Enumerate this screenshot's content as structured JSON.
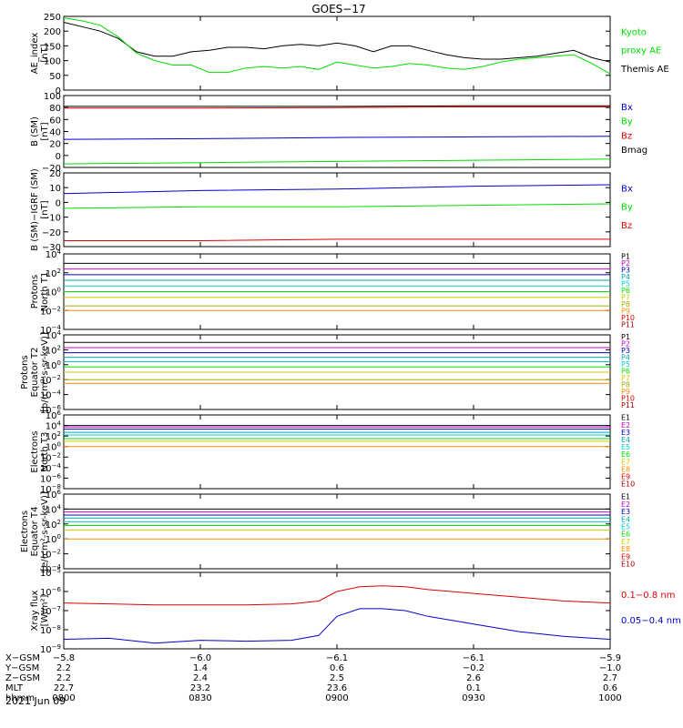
{
  "title": "GOES−17",
  "date": "2021 Jun 09",
  "colors": {
    "black": "#000000",
    "red": "#e00000",
    "green": "#00dd00",
    "blue": "#0000cc",
    "cyan": "#00cccc",
    "yellow": "#cccc00",
    "orange": "#ff8c00",
    "darkred": "#aa0000",
    "magenta": "#cc00cc",
    "purple": "#5500aa",
    "teal": "#00aaaa",
    "olive": "#aaaa00"
  },
  "chart_data": [
    {
      "id": "ae",
      "type": "line",
      "ylabel": [
        "AE_index",
        "[nT]"
      ],
      "ylim": [
        0,
        250
      ],
      "ticks": [
        "250",
        "200",
        "150",
        "100",
        "50",
        "0"
      ],
      "tick_values": [
        250,
        200,
        150,
        100,
        50,
        0
      ],
      "legend": [
        {
          "label": "Kyoto",
          "color": "green"
        },
        {
          "label": "proxy AE",
          "color": "green"
        },
        {
          "label": "Themis AE",
          "color": "black"
        }
      ],
      "x": [
        0,
        4,
        8,
        12,
        16,
        20,
        24,
        28,
        32,
        36,
        40,
        44,
        48,
        52,
        56,
        60,
        64,
        68,
        72,
        76,
        80,
        84,
        88,
        92,
        96,
        100,
        104,
        108,
        112,
        116,
        120
      ],
      "series": [
        {
          "name": "Themis AE",
          "color": "black",
          "values": [
            230,
            215,
            200,
            175,
            130,
            115,
            115,
            130,
            135,
            145,
            145,
            140,
            150,
            155,
            150,
            160,
            150,
            130,
            150,
            150,
            135,
            120,
            110,
            105,
            105,
            110,
            115,
            125,
            135,
            110,
            95
          ]
        },
        {
          "name": "Kyoto proxy AE",
          "color": "green",
          "values": [
            245,
            235,
            220,
            180,
            125,
            100,
            85,
            85,
            60,
            60,
            75,
            80,
            75,
            80,
            70,
            95,
            85,
            75,
            80,
            90,
            85,
            75,
            70,
            80,
            95,
            105,
            110,
            115,
            120,
            90,
            55
          ]
        }
      ]
    },
    {
      "id": "bsm",
      "type": "line",
      "ylabel": [
        "B (SM)",
        "[nT]"
      ],
      "ylim": [
        -20,
        100
      ],
      "ticks": [
        "100",
        "80",
        "60",
        "40",
        "20",
        "0",
        "−20"
      ],
      "tick_values": [
        100,
        80,
        60,
        40,
        20,
        0,
        -20
      ],
      "legend": [
        {
          "label": "Bx",
          "color": "blue"
        },
        {
          "label": "By",
          "color": "green"
        },
        {
          "label": "Bz",
          "color": "red"
        },
        {
          "label": "Bmag",
          "color": "black"
        }
      ],
      "x": [
        0,
        30,
        60,
        90,
        120
      ],
      "series": [
        {
          "name": "Bmag",
          "color": "black",
          "values": [
            82,
            82,
            82,
            83,
            83
          ]
        },
        {
          "name": "Bz",
          "color": "red",
          "values": [
            79,
            79,
            80,
            81,
            81
          ]
        },
        {
          "name": "Bx",
          "color": "blue",
          "values": [
            27,
            28,
            30,
            31,
            32
          ]
        },
        {
          "name": "By",
          "color": "green",
          "values": [
            -14,
            -12,
            -10,
            -8,
            -6
          ]
        }
      ]
    },
    {
      "id": "bigrf",
      "type": "line",
      "ylabel": [
        "B (SM)−IGRF (SM)",
        "[nT]"
      ],
      "ylim": [
        -30,
        20
      ],
      "ticks": [
        "20",
        "10",
        "0",
        "−10",
        "−20",
        "−30"
      ],
      "tick_values": [
        20,
        10,
        0,
        -10,
        -20,
        -30
      ],
      "legend": [
        {
          "label": "Bx",
          "color": "blue"
        },
        {
          "label": "By",
          "color": "green"
        },
        {
          "label": "Bz",
          "color": "red"
        }
      ],
      "x": [
        0,
        30,
        60,
        90,
        120
      ],
      "series": [
        {
          "name": "Bx",
          "color": "blue",
          "values": [
            6,
            8,
            9,
            11,
            12
          ]
        },
        {
          "name": "By",
          "color": "green",
          "values": [
            -4,
            -3,
            -3,
            -2,
            -1
          ]
        },
        {
          "name": "Bz",
          "color": "red",
          "values": [
            -26,
            -26,
            -25,
            -25,
            -25
          ]
        }
      ]
    },
    {
      "id": "protons_t1",
      "type": "line",
      "yscale": "log",
      "ylabel": [
        "Protons",
        "North T1"
      ],
      "ylim_exp": [
        -4,
        4
      ],
      "ticks": [
        "10^4",
        "10^2",
        "10^0",
        "10^-2",
        "10^-4"
      ],
      "tick_exps": [
        4,
        2,
        0,
        -2,
        -4
      ],
      "legend": [
        {
          "label": "P1",
          "color": "black"
        },
        {
          "label": "P2",
          "color": "magenta"
        },
        {
          "label": "P3",
          "color": "blue"
        },
        {
          "label": "P4",
          "color": "teal"
        },
        {
          "label": "P5",
          "color": "cyan"
        },
        {
          "label": "P6",
          "color": "green"
        },
        {
          "label": "P7",
          "color": "yellow"
        },
        {
          "label": "P8",
          "color": "olive"
        },
        {
          "label": "P9",
          "color": "orange"
        },
        {
          "label": "P10",
          "color": "red"
        },
        {
          "label": "P11",
          "color": "darkred"
        }
      ],
      "levels_exp": [
        3.0,
        2.4,
        1.8,
        1.2,
        0.6,
        0.0,
        -0.6,
        -1.5,
        -2.0
      ]
    },
    {
      "id": "protons_t2",
      "type": "line",
      "yscale": "log",
      "ylabel": [
        "Protons",
        "Equator T2",
        "[p/(cm²-s-sr-keV)]"
      ],
      "ylim_exp": [
        -6,
        4
      ],
      "ticks": [
        "10^4",
        "10^2",
        "10^0",
        "10^-2",
        "10^-4",
        "10^-6"
      ],
      "tick_exps": [
        4,
        2,
        0,
        -2,
        -4,
        -6
      ],
      "legend": [
        {
          "label": "P1",
          "color": "black"
        },
        {
          "label": "P2",
          "color": "magenta"
        },
        {
          "label": "P3",
          "color": "blue"
        },
        {
          "label": "P4",
          "color": "teal"
        },
        {
          "label": "P5",
          "color": "cyan"
        },
        {
          "label": "P6",
          "color": "green"
        },
        {
          "label": "P7",
          "color": "yellow"
        },
        {
          "label": "P8",
          "color": "olive"
        },
        {
          "label": "P9",
          "color": "orange"
        },
        {
          "label": "P10",
          "color": "red"
        },
        {
          "label": "P11",
          "color": "darkred"
        }
      ],
      "levels_exp": [
        3.0,
        2.3,
        1.6,
        1.0,
        0.4,
        -0.3,
        -1.0,
        -2.0,
        -2.5
      ]
    },
    {
      "id": "electrons_t3",
      "type": "line",
      "yscale": "log",
      "ylabel": [
        "Electrons",
        "North T3"
      ],
      "ylim_exp": [
        -8,
        6
      ],
      "ticks": [
        "10^6",
        "10^4",
        "10^2",
        "10^0",
        "10^-2",
        "10^-4",
        "10^-6",
        "10^-8"
      ],
      "tick_exps": [
        6,
        4,
        2,
        0,
        -2,
        -4,
        -6,
        -8
      ],
      "legend": [
        {
          "label": "E1",
          "color": "black"
        },
        {
          "label": "E2",
          "color": "magenta"
        },
        {
          "label": "E3",
          "color": "blue"
        },
        {
          "label": "E4",
          "color": "teal"
        },
        {
          "label": "E5",
          "color": "cyan"
        },
        {
          "label": "E6",
          "color": "green"
        },
        {
          "label": "E7",
          "color": "yellow"
        },
        {
          "label": "E8",
          "color": "orange"
        },
        {
          "label": "E9",
          "color": "red"
        },
        {
          "label": "E10",
          "color": "darkred"
        }
      ],
      "levels_exp": [
        4.0,
        3.7,
        3.3,
        2.7,
        2.2,
        1.5,
        1.0,
        0.0
      ]
    },
    {
      "id": "electrons_t4",
      "type": "line",
      "yscale": "log",
      "ylabel": [
        "Electrons",
        "Equator T4",
        "[e/(cm²-s-sr-keV)]"
      ],
      "ylim_exp": [
        -4,
        6
      ],
      "ticks": [
        "10^6",
        "10^4",
        "10^2",
        "10^0",
        "10^-2",
        "10^-4"
      ],
      "tick_exps": [
        6,
        4,
        2,
        0,
        -2,
        -4
      ],
      "legend": [
        {
          "label": "E1",
          "color": "black"
        },
        {
          "label": "E2",
          "color": "magenta"
        },
        {
          "label": "E3",
          "color": "blue"
        },
        {
          "label": "E4",
          "color": "teal"
        },
        {
          "label": "E5",
          "color": "cyan"
        },
        {
          "label": "E6",
          "color": "green"
        },
        {
          "label": "E7",
          "color": "yellow"
        },
        {
          "label": "E8",
          "color": "orange"
        },
        {
          "label": "E9",
          "color": "red"
        },
        {
          "label": "E10",
          "color": "darkred"
        }
      ],
      "levels_exp": [
        4.0,
        3.6,
        3.2,
        2.8,
        2.3,
        1.8,
        1.2,
        0.0
      ]
    },
    {
      "id": "xray",
      "type": "line",
      "yscale": "log",
      "ylabel": [
        "Xray flux",
        "[W/m²]"
      ],
      "ylim_exp": [
        -9,
        -5
      ],
      "ticks": [
        "10^-5",
        "10^-6",
        "10^-7",
        "10^-8",
        "10^-9"
      ],
      "tick_exps": [
        -5,
        -6,
        -7,
        -8,
        -9
      ],
      "legend": [
        {
          "label": "0.1−0.8 nm",
          "color": "red"
        },
        {
          "label": "0.05−0.4 nm",
          "color": "blue"
        }
      ],
      "x": [
        0,
        10,
        20,
        30,
        40,
        50,
        56,
        60,
        65,
        70,
        75,
        80,
        90,
        100,
        110,
        120
      ],
      "series": [
        {
          "name": "0.1−0.8 nm",
          "color": "red",
          "values_exp": [
            -6.6,
            -6.65,
            -6.7,
            -6.7,
            -6.7,
            -6.65,
            -6.5,
            -6.0,
            -5.75,
            -5.7,
            -5.75,
            -5.9,
            -6.1,
            -6.3,
            -6.5,
            -6.6
          ]
        },
        {
          "name": "0.05−0.4 nm",
          "color": "blue",
          "values_exp": [
            -8.5,
            -8.45,
            -8.7,
            -8.55,
            -8.6,
            -8.55,
            -8.3,
            -7.3,
            -6.9,
            -6.9,
            -7.0,
            -7.3,
            -7.7,
            -8.1,
            -8.35,
            -8.5
          ]
        }
      ]
    }
  ],
  "xaxis": {
    "row_labels": [
      "X−GSM",
      "Y−GSM",
      "Z−GSM",
      "MLT",
      "hhmm"
    ],
    "columns": [
      {
        "x": 0,
        "values": [
          "−5.8",
          "2.2",
          "2.2",
          "22.7",
          "0800"
        ]
      },
      {
        "x": 30,
        "values": [
          "−6.0",
          "1.4",
          "2.4",
          "23.2",
          "0830"
        ]
      },
      {
        "x": 60,
        "values": [
          "−6.1",
          "0.6",
          "2.5",
          "23.6",
          "0900"
        ]
      },
      {
        "x": 90,
        "values": [
          "−6.1",
          "−0.2",
          "2.6",
          "0.1",
          "0930"
        ]
      },
      {
        "x": 120,
        "values": [
          "−5.9",
          "−1.0",
          "2.7",
          "0.6",
          "1000"
        ]
      }
    ]
  }
}
